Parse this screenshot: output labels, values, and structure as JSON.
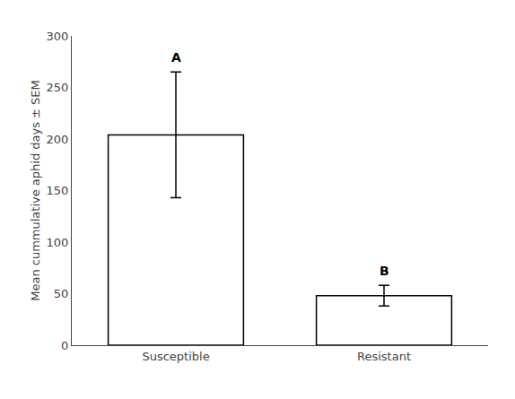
{
  "chart_data": {
    "type": "bar",
    "categories": [
      "Susceptible",
      "Resistant"
    ],
    "values": [
      204,
      48
    ],
    "errors": [
      61,
      10
    ],
    "color": "#ffffff",
    "ylabel": "Mean cummulative aphid days ± SEM",
    "ylim": [
      0,
      300
    ],
    "yticks": [
      0,
      50,
      100,
      150,
      200,
      250,
      300
    ],
    "grid": false,
    "annotations": [
      {
        "category": "Susceptible",
        "text": "A"
      },
      {
        "category": "Resistant",
        "text": "B"
      }
    ]
  }
}
